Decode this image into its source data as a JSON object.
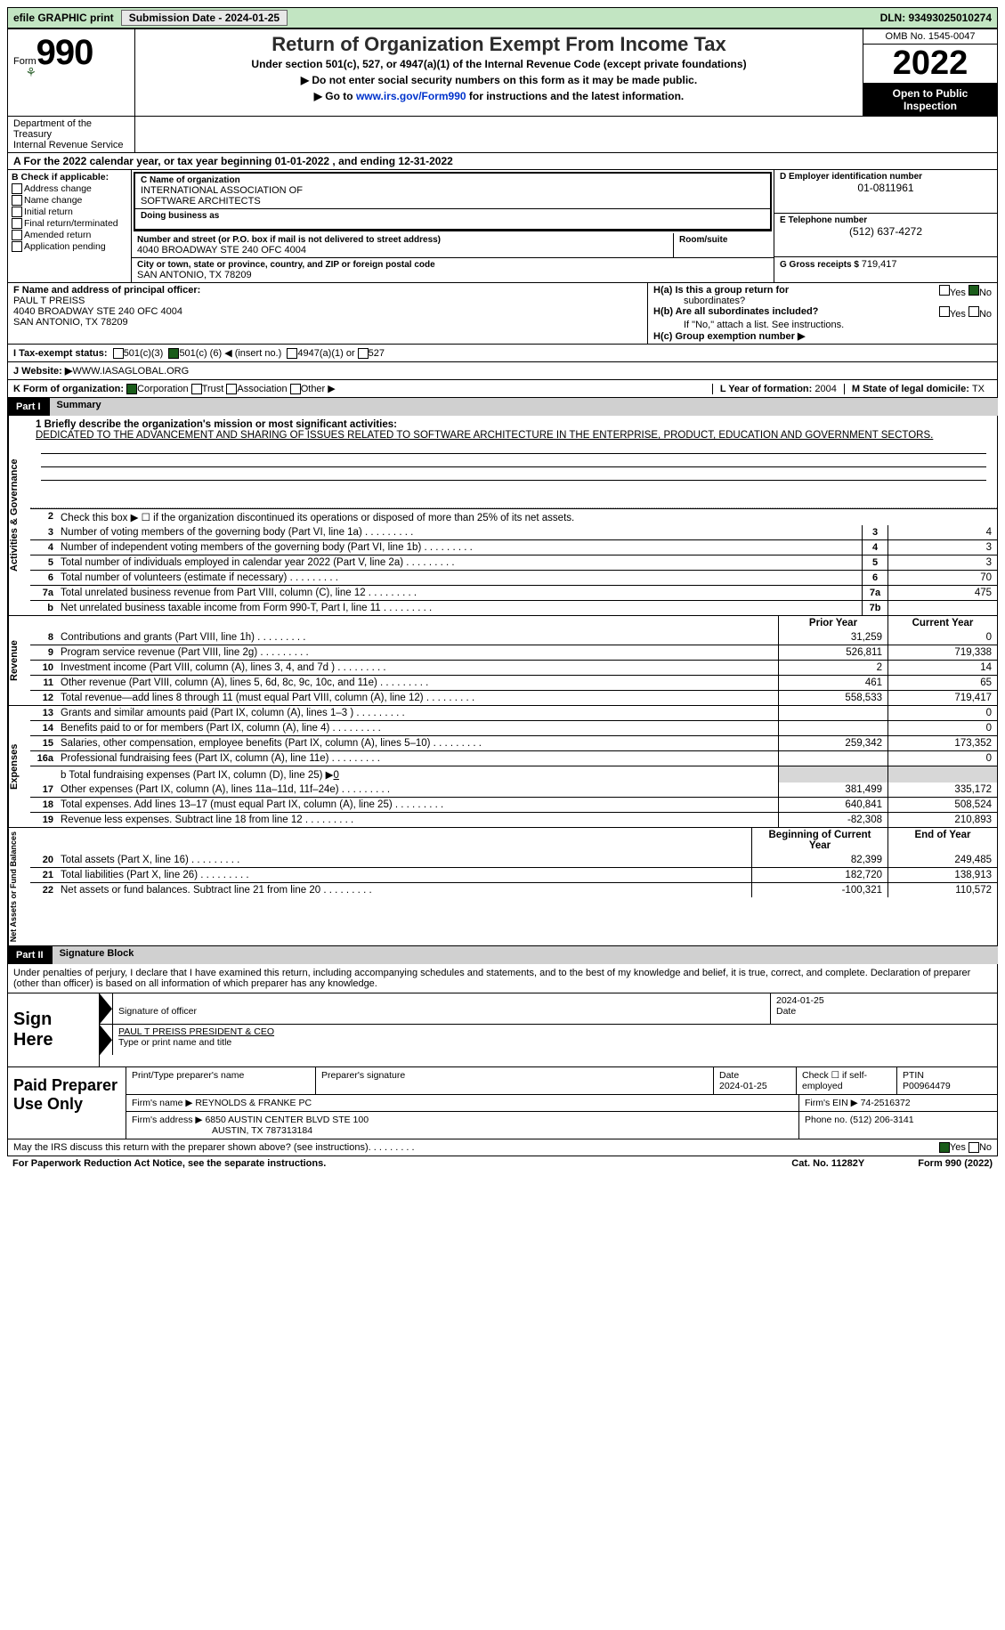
{
  "topbar": {
    "efile": "efile GRAPHIC print",
    "submission_label": "Submission Date - 2024-01-25",
    "dln_label": "DLN: 93493025010274"
  },
  "header": {
    "form_word": "Form",
    "form_num": "990",
    "dept1": "Department of the Treasury",
    "dept2": "Internal Revenue Service",
    "title": "Return of Organization Exempt From Income Tax",
    "subtitle": "Under section 501(c), 527, or 4947(a)(1) of the Internal Revenue Code (except private foundations)",
    "note1": "▶ Do not enter social security numbers on this form as it may be made public.",
    "note2_pre": "▶ Go to ",
    "note2_link": "www.irs.gov/Form990",
    "note2_post": " for instructions and the latest information.",
    "omb": "OMB No. 1545-0047",
    "year": "2022",
    "open": "Open to Public Inspection"
  },
  "period": {
    "text_a": "A For the 2022 calendar year, or tax year beginning ",
    "begin": "01-01-2022",
    "text_mid": " , and ending ",
    "end": "12-31-2022"
  },
  "sectionB": {
    "hdr": "B Check if applicable:",
    "opts": [
      "Address change",
      "Name change",
      "Initial return",
      "Final return/terminated",
      "Amended return",
      "Application pending"
    ]
  },
  "sectionC": {
    "label": "C Name of organization",
    "org1": "INTERNATIONAL ASSOCIATION OF",
    "org2": "SOFTWARE ARCHITECTS",
    "dba_label": "Doing business as",
    "street_label": "Number and street (or P.O. box if mail is not delivered to street address)",
    "room_label": "Room/suite",
    "street": "4040 BROADWAY STE 240 OFC 4004",
    "city_label": "City or town, state or province, country, and ZIP or foreign postal code",
    "city": "SAN ANTONIO, TX  78209"
  },
  "sectionD": {
    "label": "D Employer identification number",
    "val": "01-0811961"
  },
  "sectionE": {
    "label": "E Telephone number",
    "val": "(512) 637-4272"
  },
  "sectionG": {
    "label": "G Gross receipts $ ",
    "val": "719,417"
  },
  "sectionF": {
    "label": "F Name and address of principal officer:",
    "l1": "PAUL T PREISS",
    "l2": "4040 BROADWAY STE 240 OFC 4004",
    "l3": "SAN ANTONIO, TX  78209"
  },
  "sectionH": {
    "ha1": "H(a)  Is this a group return for",
    "ha2": "subordinates?",
    "hb": "H(b)  Are all subordinates included?",
    "hb_note": "If \"No,\" attach a list. See instructions.",
    "hc": "H(c)  Group exemption number ▶",
    "yes": "Yes",
    "no": "No"
  },
  "sectionI": {
    "label": "I    Tax-exempt status:",
    "o1": "501(c)(3)",
    "o2a": "501(c) (",
    "o2n": "6",
    "o2b": ") ◀ (insert no.)",
    "o3": "4947(a)(1) or",
    "o4": "527"
  },
  "sectionJ": {
    "label": "J    Website: ▶",
    "val": " WWW.IASAGLOBAL.ORG"
  },
  "sectionK": {
    "label": "K Form of organization:",
    "o1": "Corporation",
    "o2": "Trust",
    "o3": "Association",
    "o4": "Other ▶"
  },
  "sectionL": {
    "label": "L Year of formation: ",
    "val": "2004"
  },
  "sectionM": {
    "label": "M State of legal domicile: ",
    "val": "TX"
  },
  "part1": {
    "tag": "Part I",
    "title": "Summary"
  },
  "summary": {
    "line1_label": "1   Briefly describe the organization's mission or most significant activities:",
    "mission": "DEDICATED TO THE ADVANCEMENT AND SHARING OF ISSUES RELATED TO SOFTWARE ARCHITECTURE IN THE ENTERPRISE, PRODUCT, EDUCATION AND GOVERNMENT SECTORS.",
    "line2": "Check this box ▶ ☐ if the organization discontinued its operations or disposed of more than 25% of its net assets.",
    "side_act": "Activities & Governance",
    "side_rev": "Revenue",
    "side_exp": "Expenses",
    "side_net": "Net Assets or Fund Balances",
    "hdr_prior": "Prior Year",
    "hdr_curr": "Current Year",
    "hdr_boy": "Beginning of Current Year",
    "hdr_eoy": "End of Year",
    "rows_top": [
      {
        "n": "3",
        "d": "Number of voting members of the governing body (Part VI, line 1a)",
        "box": "3",
        "v": "4"
      },
      {
        "n": "4",
        "d": "Number of independent voting members of the governing body (Part VI, line 1b)",
        "box": "4",
        "v": "3"
      },
      {
        "n": "5",
        "d": "Total number of individuals employed in calendar year 2022 (Part V, line 2a)",
        "box": "5",
        "v": "3"
      },
      {
        "n": "6",
        "d": "Total number of volunteers (estimate if necessary)",
        "box": "6",
        "v": "70"
      },
      {
        "n": "7a",
        "d": "Total unrelated business revenue from Part VIII, column (C), line 12",
        "box": "7a",
        "v": "475"
      },
      {
        "n": "b",
        "d": "Net unrelated business taxable income from Form 990-T, Part I, line 11",
        "box": "7b",
        "v": ""
      }
    ],
    "rows_rev": [
      {
        "n": "8",
        "d": "Contributions and grants (Part VIII, line 1h)",
        "p": "31,259",
        "c": "0"
      },
      {
        "n": "9",
        "d": "Program service revenue (Part VIII, line 2g)",
        "p": "526,811",
        "c": "719,338"
      },
      {
        "n": "10",
        "d": "Investment income (Part VIII, column (A), lines 3, 4, and 7d )",
        "p": "2",
        "c": "14"
      },
      {
        "n": "11",
        "d": "Other revenue (Part VIII, column (A), lines 5, 6d, 8c, 9c, 10c, and 11e)",
        "p": "461",
        "c": "65"
      },
      {
        "n": "12",
        "d": "Total revenue—add lines 8 through 11 (must equal Part VIII, column (A), line 12)",
        "p": "558,533",
        "c": "719,417"
      }
    ],
    "rows_exp": [
      {
        "n": "13",
        "d": "Grants and similar amounts paid (Part IX, column (A), lines 1–3 )",
        "p": "",
        "c": "0"
      },
      {
        "n": "14",
        "d": "Benefits paid to or for members (Part IX, column (A), line 4)",
        "p": "",
        "c": "0"
      },
      {
        "n": "15",
        "d": "Salaries, other compensation, employee benefits (Part IX, column (A), lines 5–10)",
        "p": "259,342",
        "c": "173,352"
      },
      {
        "n": "16a",
        "d": "Professional fundraising fees (Part IX, column (A), line 11e)",
        "p": "",
        "c": "0"
      }
    ],
    "line16b": "b   Total fundraising expenses (Part IX, column (D), line 25) ▶",
    "line16b_val": "0",
    "rows_exp2": [
      {
        "n": "17",
        "d": "Other expenses (Part IX, column (A), lines 11a–11d, 11f–24e)",
        "p": "381,499",
        "c": "335,172"
      },
      {
        "n": "18",
        "d": "Total expenses. Add lines 13–17 (must equal Part IX, column (A), line 25)",
        "p": "640,841",
        "c": "508,524"
      },
      {
        "n": "19",
        "d": "Revenue less expenses. Subtract line 18 from line 12",
        "p": "-82,308",
        "c": "210,893"
      }
    ],
    "rows_net": [
      {
        "n": "20",
        "d": "Total assets (Part X, line 16)",
        "p": "82,399",
        "c": "249,485"
      },
      {
        "n": "21",
        "d": "Total liabilities (Part X, line 26)",
        "p": "182,720",
        "c": "138,913"
      },
      {
        "n": "22",
        "d": "Net assets or fund balances. Subtract line 21 from line 20",
        "p": "-100,321",
        "c": "110,572"
      }
    ]
  },
  "part2": {
    "tag": "Part II",
    "title": "Signature Block"
  },
  "sig": {
    "decl": "Under penalties of perjury, I declare that I have examined this return, including accompanying schedules and statements, and to the best of my knowledge and belief, it is true, correct, and complete. Declaration of preparer (other than officer) is based on all information of which preparer has any knowledge.",
    "sign_here": "Sign Here",
    "sig_off": "Signature of officer",
    "date": "Date",
    "date_val": "2024-01-25",
    "name": "PAUL T PREISS  PRESIDENT & CEO",
    "name_lbl": "Type or print name and title"
  },
  "paid": {
    "title": "Paid Preparer Use Only",
    "prep_name_lbl": "Print/Type preparer's name",
    "prep_sig_lbl": "Preparer's signature",
    "date_lbl": "Date",
    "date_val": "2024-01-25",
    "check_lbl": "Check ☐ if self-employed",
    "ptin_lbl": "PTIN",
    "ptin": "P00964479",
    "firm_name_lbl": "Firm's name    ▶ ",
    "firm_name": "REYNOLDS & FRANKE PC",
    "firm_ein_lbl": "Firm's EIN ▶ ",
    "firm_ein": "74-2516372",
    "firm_addr_lbl": "Firm's address ▶ ",
    "firm_addr1": "6850 AUSTIN CENTER BLVD STE 100",
    "firm_addr2": "AUSTIN, TX  787313184",
    "phone_lbl": "Phone no. ",
    "phone": "(512) 206-3141"
  },
  "footer": {
    "discuss": "May the IRS discuss this return with the preparer shown above? (see instructions)",
    "yes": "Yes",
    "no": "No",
    "paperwork": "For Paperwork Reduction Act Notice, see the separate instructions.",
    "cat": "Cat. No. 11282Y",
    "form": "Form 990 (2022)"
  }
}
